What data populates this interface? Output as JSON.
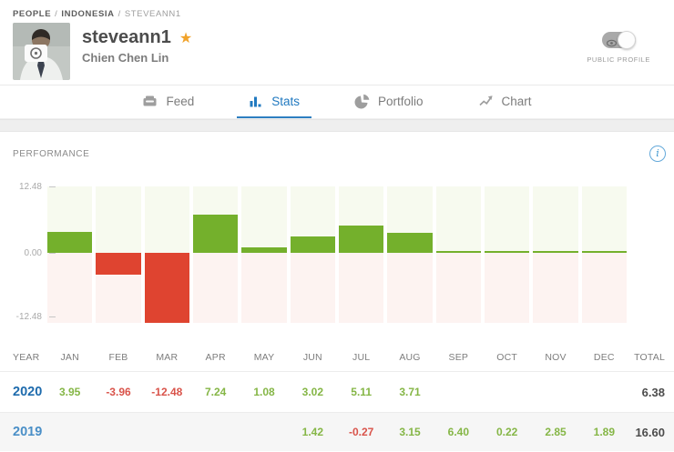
{
  "breadcrumb": {
    "items": [
      "PEOPLE",
      "INDONESIA",
      "STEVEANN1"
    ],
    "separator": "/"
  },
  "profile": {
    "username": "steveann1",
    "star_icon": "★",
    "full_name": "Chien Chen Lin",
    "public_profile_label": "PUBLIC PROFILE",
    "toggle_state": "on"
  },
  "tabs": [
    {
      "label": "Feed",
      "icon": "feed-icon",
      "active": false
    },
    {
      "label": "Stats",
      "icon": "stats-icon",
      "active": true
    },
    {
      "label": "Portfolio",
      "icon": "portfolio-icon",
      "active": false
    },
    {
      "label": "Chart",
      "icon": "chart-icon",
      "active": false
    }
  ],
  "performance": {
    "title": "PERFORMANCE",
    "info_icon": "i"
  },
  "chart_data": {
    "type": "bar",
    "categories": [
      "JAN",
      "FEB",
      "MAR",
      "APR",
      "MAY",
      "JUN",
      "JUL",
      "AUG",
      "SEP",
      "OCT",
      "NOV",
      "DEC"
    ],
    "series": [
      {
        "name": "2020",
        "values": [
          3.95,
          -3.96,
          -12.48,
          7.24,
          1.08,
          3.02,
          5.11,
          3.71,
          0,
          0,
          0,
          0
        ]
      }
    ],
    "yticks": [
      "12.48",
      "0.00",
      "-12.48"
    ],
    "ylim": [
      -12.48,
      12.48
    ],
    "grid": false,
    "legend": "none",
    "colors": {
      "positive_bar": "#74b02c",
      "negative_bar": "#df4430",
      "positive_bg": "#f7faef",
      "negative_bg": "#fdf3f1"
    }
  },
  "table": {
    "columns": [
      "YEAR",
      "JAN",
      "FEB",
      "MAR",
      "APR",
      "MAY",
      "JUN",
      "JUL",
      "AUG",
      "SEP",
      "OCT",
      "NOV",
      "DEC",
      "TOTAL"
    ],
    "rows": [
      {
        "year": "2020",
        "year_color": "#1e6bad",
        "values": [
          "3.95",
          "-3.96",
          "-12.48",
          "7.24",
          "1.08",
          "3.02",
          "5.11",
          "3.71",
          "",
          "",
          "",
          ""
        ],
        "total": "6.38"
      },
      {
        "year": "2019",
        "year_color": "#4a8fc7",
        "values": [
          "",
          "",
          "",
          "",
          "",
          "1.42",
          "-0.27",
          "3.15",
          "6.40",
          "0.22",
          "2.85",
          "1.89"
        ],
        "total": "16.60"
      }
    ]
  },
  "colors": {
    "accent_blue": "#2079c0",
    "positive_text": "#85b646",
    "negative_text": "#d9534a",
    "inactive_gray": "#9b9b9b"
  }
}
